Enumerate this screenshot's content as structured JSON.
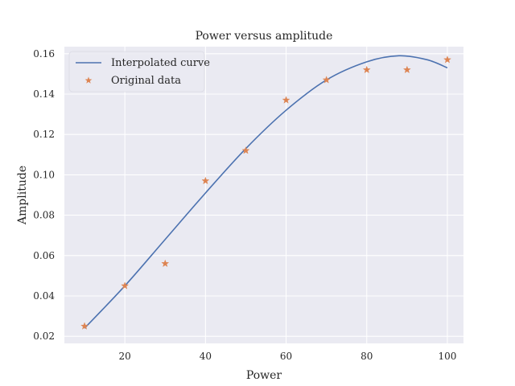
{
  "chart_data": {
    "type": "line",
    "title": "Power versus amplitude",
    "xlabel": "Power",
    "ylabel": "Amplitude",
    "xlim": [
      5,
      104
    ],
    "ylim": [
      0.0165,
      0.1635
    ],
    "x_ticks": [
      20,
      40,
      60,
      80,
      100
    ],
    "y_ticks": [
      0.02,
      0.04,
      0.06,
      0.08,
      0.1,
      0.12,
      0.14,
      0.16
    ],
    "x_tick_labels": [
      "20",
      "40",
      "60",
      "80",
      "100"
    ],
    "y_tick_labels": [
      "0.02",
      "0.04",
      "0.06",
      "0.08",
      "0.10",
      "0.12",
      "0.14",
      "0.16"
    ],
    "grid": true,
    "legend_position": "top-left",
    "background": "#eaeaf2",
    "series": [
      {
        "name": "Interpolated curve",
        "kind": "line",
        "color": "#4c72b0",
        "x": [
          10,
          20,
          30,
          40,
          50,
          60,
          70,
          80,
          88,
          95,
          100
        ],
        "y": [
          0.024,
          0.045,
          0.068,
          0.091,
          0.113,
          0.132,
          0.147,
          0.156,
          0.159,
          0.157,
          0.153
        ]
      },
      {
        "name": "Original data",
        "kind": "scatter",
        "marker": "star",
        "color": "#dd8452",
        "x": [
          10,
          20,
          30,
          40,
          50,
          60,
          70,
          80,
          90,
          100
        ],
        "y": [
          0.025,
          0.045,
          0.056,
          0.097,
          0.112,
          0.137,
          0.147,
          0.152,
          0.152,
          0.157
        ]
      }
    ]
  }
}
